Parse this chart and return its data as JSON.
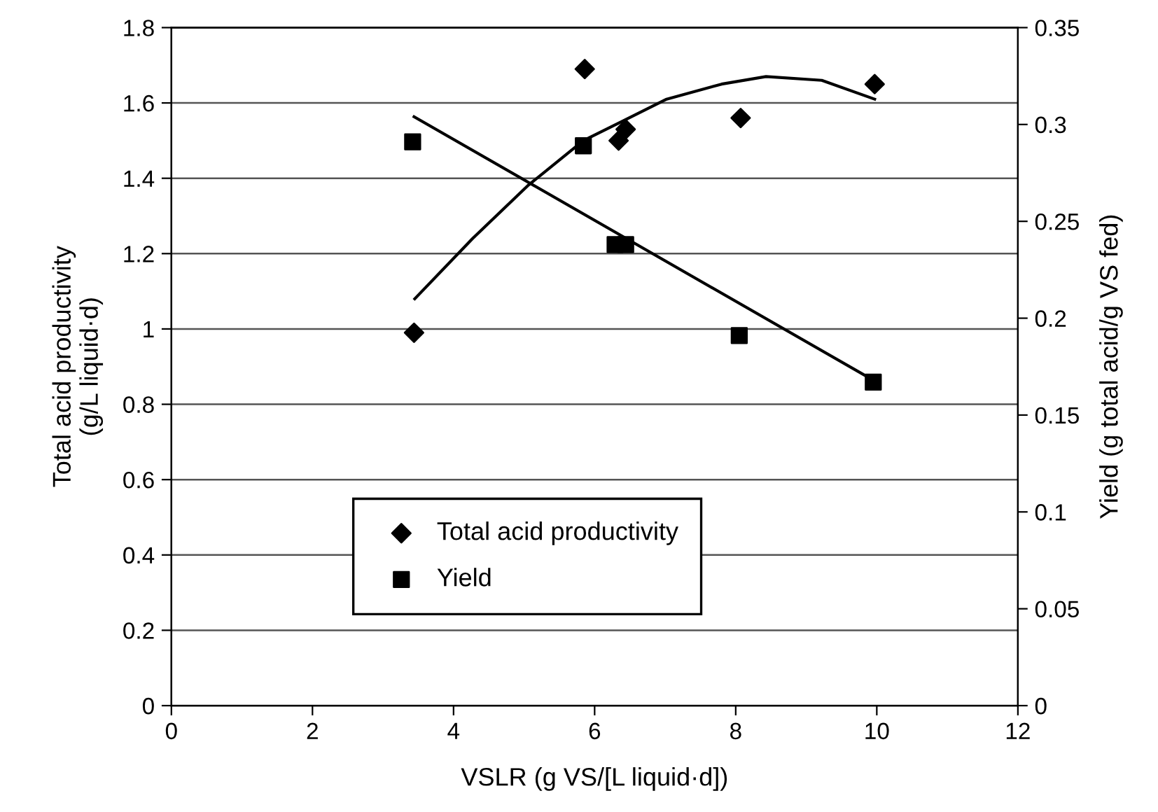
{
  "chart_data": {
    "type": "scatter",
    "xlabel": "VSLR (g VS/[L liquid·d])",
    "ylabel": "Total acid productivity\n(g/L liquid·d)",
    "y2label": "Yield (g total acid/g VS fed)",
    "xlim": [
      0,
      12
    ],
    "xticks": [
      0,
      2,
      4,
      6,
      8,
      10,
      12
    ],
    "ylim": [
      0,
      1.8
    ],
    "yticks": [
      0,
      0.2,
      0.4,
      0.6,
      0.8,
      1,
      1.2,
      1.4,
      1.6,
      1.8
    ],
    "y2lim": [
      0,
      0.35
    ],
    "y2ticks": [
      0,
      0.05,
      0.1,
      0.15,
      0.2,
      0.25,
      0.3,
      0.35
    ],
    "grid": "y",
    "legend": "left",
    "series": [
      {
        "name": "Total acid productivity",
        "marker": "diamond",
        "color": "#000000",
        "x": [
          3.44,
          5.86,
          6.34,
          6.44,
          8.07,
          9.97
        ],
        "values": [
          0.99,
          1.69,
          1.5,
          1.53,
          1.56,
          1.65
        ]
      },
      {
        "name": "Yield",
        "marker": "square",
        "axis": "y2",
        "color": "#000000",
        "x": [
          3.42,
          5.84,
          6.29,
          6.44,
          8.05,
          9.95
        ],
        "values": [
          0.291,
          0.289,
          0.238,
          0.238,
          0.191,
          0.167
        ]
      },
      {
        "type": "line",
        "line_style": "solid",
        "color": "#000000",
        "x": [
          3.45,
          4.27,
          5.05,
          5.84,
          6.38,
          7.02,
          7.8,
          8.43,
          9.22,
          9.97
        ],
        "values": [
          1.08,
          1.24,
          1.38,
          1.5,
          1.55,
          1.61,
          1.65,
          1.67,
          1.66,
          1.61
        ]
      },
      {
        "type": "line",
        "line_style": "solid",
        "axis": "y2",
        "color": "#000000",
        "x": [
          3.44,
          9.95
        ],
        "values": [
          0.304,
          0.168
        ]
      }
    ]
  }
}
